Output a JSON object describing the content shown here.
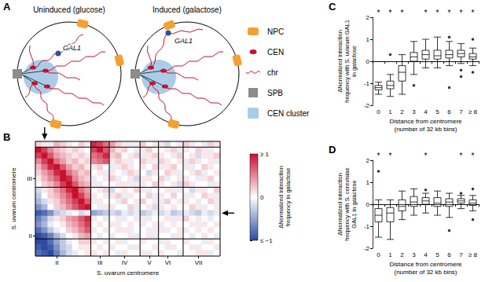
{
  "diagram": {
    "panel": "A",
    "gene_color": "#2f4f9f",
    "nuclei": [
      {
        "title": "Uninduced (glucose)",
        "gene": "GAL1"
      },
      {
        "title": "Induced (galactose)",
        "gene": "GAL1"
      }
    ],
    "key": [
      {
        "label": "NPC",
        "color": "#f5a030"
      },
      {
        "label": "CEN",
        "color": "#c8102e"
      },
      {
        "label": "chr",
        "color": "#c8102e"
      },
      {
        "label": "SPB",
        "color": "#8c8c8c"
      },
      {
        "label": "CEN cluster",
        "color": "#a9cde9"
      }
    ]
  },
  "chart_data": [
    {
      "panel": "B",
      "type": "heatmap",
      "x_label": "S. uvarum centromere",
      "y_label": "S. uvarum centromere",
      "categories": [
        null,
        null,
        null,
        "II",
        null,
        null,
        null,
        null,
        null,
        null,
        "III",
        null,
        null,
        null,
        "IV",
        null,
        null,
        null,
        "V",
        null,
        null,
        "VI",
        null,
        null,
        null,
        null,
        "VII",
        null,
        null,
        null
      ],
      "y_categories": [
        null,
        null,
        null,
        null,
        null,
        null,
        "III",
        null,
        null,
        null,
        null,
        null,
        null,
        null,
        null,
        null,
        "II",
        null,
        null,
        null
      ],
      "x_boundaries": [
        9,
        12,
        17,
        20,
        24
      ],
      "y_boundaries": [
        1,
        8,
        17
      ],
      "gal1_bin": {
        "x": 1,
        "y": 12
      },
      "cells": [
        [
          0.2,
          0.1,
          -0.1,
          0.3,
          0.2,
          0.1,
          0.0,
          0.2,
          0.1,
          0.9,
          0.8,
          0.6,
          0.4,
          0.2,
          0.1,
          -0.1,
          0.1,
          0.2,
          0.0,
          0.1,
          0.1,
          -0.2,
          0.0,
          0.1,
          0.2,
          0.1,
          0.0,
          -0.1,
          0.2,
          0.1
        ],
        [
          1.0,
          0.8,
          0.5,
          0.3,
          0.2,
          0.1,
          0.2,
          0.1,
          0.0,
          0.8,
          1.0,
          0.7,
          0.3,
          0.1,
          0.2,
          0.0,
          -0.1,
          0.1,
          0.2,
          0.0,
          0.0,
          0.1,
          0.2,
          -0.1,
          0.1,
          0.0,
          0.2,
          0.1,
          -0.1,
          0.0
        ],
        [
          0.8,
          1.0,
          0.7,
          0.4,
          0.3,
          0.2,
          0.1,
          0.2,
          0.1,
          0.6,
          0.7,
          0.9,
          0.2,
          0.3,
          0.0,
          0.1,
          0.2,
          -0.1,
          0.1,
          0.2,
          0.1,
          0.0,
          -0.1,
          0.2,
          0.0,
          0.1,
          -0.2,
          0.1,
          0.1,
          0.2
        ],
        [
          0.5,
          0.8,
          1.0,
          0.6,
          0.4,
          0.2,
          0.3,
          0.1,
          0.2,
          0.5,
          0.6,
          0.7,
          0.1,
          0.2,
          0.1,
          -0.1,
          0.0,
          0.2,
          0.1,
          -0.1,
          0.2,
          0.1,
          0.0,
          0.1,
          -0.1,
          0.2,
          0.1,
          0.0,
          0.1,
          -0.1
        ],
        [
          0.3,
          0.6,
          0.9,
          1.0,
          0.7,
          0.4,
          0.2,
          0.3,
          0.1,
          0.1,
          0.2,
          0.0,
          -0.1,
          0.1,
          0.2,
          0.1,
          0.0,
          0.1,
          0.0,
          0.2,
          -0.1,
          0.1,
          0.2,
          0.0,
          0.1,
          -0.1,
          0.0,
          0.2,
          0.1,
          0.0
        ],
        [
          0.2,
          0.4,
          0.6,
          0.9,
          1.0,
          0.6,
          0.4,
          0.2,
          0.3,
          0.0,
          0.1,
          -0.1,
          0.1,
          0.0,
          -0.1,
          0.2,
          0.1,
          0.0,
          -0.2,
          0.1,
          0.0,
          0.2,
          0.1,
          -0.1,
          0.0,
          0.1,
          0.2,
          -0.1,
          0.0,
          0.1
        ],
        [
          0.1,
          0.3,
          0.5,
          0.7,
          1.0,
          0.9,
          0.5,
          0.3,
          0.2,
          -0.1,
          0.0,
          0.1,
          0.2,
          -0.1,
          0.0,
          0.1,
          -0.2,
          0.1,
          0.1,
          0.0,
          0.2,
          -0.1,
          0.0,
          0.1,
          0.1,
          0.0,
          -0.1,
          0.1,
          0.2,
          0.0
        ],
        [
          0.0,
          0.2,
          0.3,
          0.5,
          0.8,
          1.0,
          0.7,
          0.4,
          0.3,
          0.1,
          -0.1,
          0.0,
          0.0,
          0.1,
          0.1,
          -0.1,
          0.1,
          -0.1,
          0.0,
          0.2,
          0.1,
          0.0,
          0.1,
          -0.2,
          0.2,
          0.1,
          0.0,
          0.0,
          -0.1,
          0.1
        ],
        [
          -0.2,
          0.1,
          0.2,
          0.4,
          0.6,
          0.9,
          1.0,
          0.6,
          0.4,
          0.0,
          0.1,
          0.2,
          -0.2,
          0.0,
          0.1,
          0.0,
          0.2,
          0.1,
          -0.1,
          0.0,
          0.0,
          0.1,
          -0.1,
          0.1,
          0.0,
          -0.2,
          0.1,
          0.1,
          0.0,
          0.2
        ],
        [
          -0.3,
          0.0,
          0.2,
          0.3,
          0.5,
          0.7,
          1.0,
          0.8,
          0.5,
          0.1,
          0.0,
          -0.1,
          0.1,
          0.2,
          -0.1,
          0.1,
          0.0,
          0.0,
          0.2,
          -0.1,
          0.1,
          0.0,
          0.2,
          0.0,
          -0.1,
          0.1,
          0.0,
          0.2,
          0.1,
          -0.1
        ],
        [
          -0.4,
          -0.2,
          0.1,
          0.2,
          0.4,
          0.6,
          0.8,
          1.0,
          0.7,
          -0.1,
          0.1,
          0.0,
          0.0,
          -0.1,
          0.2,
          0.0,
          0.1,
          0.2,
          0.0,
          0.1,
          -0.1,
          0.2,
          0.0,
          0.1,
          0.1,
          0.0,
          -0.1,
          0.0,
          0.2,
          0.1
        ],
        [
          -0.6,
          -0.4,
          0.0,
          0.2,
          0.3,
          0.5,
          0.7,
          0.9,
          1.0,
          0.0,
          -0.1,
          0.1,
          0.1,
          0.0,
          0.0,
          0.2,
          -0.1,
          0.0,
          0.1,
          -0.2,
          0.1,
          0.0,
          0.1,
          0.0,
          0.0,
          0.2,
          0.1,
          -0.1,
          0.0,
          0.1
        ],
        [
          -0.9,
          -0.8,
          -0.6,
          -0.3,
          -0.2,
          -0.1,
          0.0,
          -0.2,
          -0.1,
          -0.5,
          -0.4,
          -0.3,
          -0.2,
          -0.3,
          -0.1,
          -0.2,
          -0.1,
          -0.3,
          -0.2,
          -0.1,
          -0.2,
          -0.1,
          -0.3,
          -0.2,
          -0.1,
          -0.2,
          -0.3,
          -0.1,
          -0.2,
          -0.1
        ],
        [
          -0.7,
          -0.5,
          -0.2,
          0.1,
          0.2,
          0.4,
          0.5,
          0.7,
          0.9,
          0.1,
          0.0,
          -0.1,
          0.0,
          0.1,
          -0.1,
          0.0,
          0.1,
          -0.1,
          0.1,
          0.0,
          0.0,
          0.1,
          -0.1,
          0.1,
          0.2,
          0.0,
          0.1,
          0.0,
          -0.1,
          0.0
        ],
        [
          -0.6,
          -0.4,
          -0.1,
          0.0,
          0.1,
          0.3,
          0.4,
          0.6,
          0.8,
          0.0,
          0.1,
          0.0,
          0.1,
          -0.1,
          0.0,
          0.1,
          0.0,
          0.1,
          0.0,
          0.1,
          -0.1,
          0.0,
          0.1,
          0.0,
          0.0,
          0.1,
          -0.1,
          0.1,
          0.0,
          0.1
        ],
        [
          -0.8,
          -0.6,
          -0.3,
          -0.1,
          0.0,
          0.2,
          0.3,
          0.5,
          0.7,
          -0.1,
          0.0,
          0.1,
          0.0,
          0.1,
          0.1,
          -0.1,
          0.0,
          0.0,
          -0.1,
          0.1,
          0.1,
          -0.1,
          0.0,
          0.1,
          -0.1,
          0.0,
          0.1,
          0.0,
          0.1,
          0.0
        ],
        [
          -1.0,
          -0.9,
          -0.7,
          -0.4,
          -0.2,
          0.0,
          0.1,
          0.3,
          0.4,
          0.0,
          -0.1,
          0.0,
          -0.1,
          0.0,
          0.0,
          0.1,
          -0.1,
          0.0,
          0.1,
          -0.1,
          0.0,
          0.0,
          -0.1,
          0.1,
          0.0,
          -0.1,
          0.0,
          0.1,
          0.0,
          -0.1
        ],
        [
          -1.0,
          -1.0,
          -0.8,
          -0.5,
          -0.3,
          -0.1,
          0.0,
          0.2,
          0.2,
          0.1,
          0.0,
          -0.1,
          0.0,
          0.1,
          -0.1,
          0.0,
          0.0,
          0.1,
          0.0,
          0.0,
          -0.1,
          0.1,
          0.0,
          0.0,
          0.1,
          0.0,
          0.0,
          -0.1,
          0.1,
          0.0
        ],
        [
          -0.9,
          -1.0,
          -0.9,
          -0.6,
          -0.3,
          -0.2,
          0.0,
          0.1,
          0.1,
          0.0,
          0.1,
          0.0,
          0.1,
          0.0,
          0.0,
          -0.1,
          0.1,
          0.0,
          0.0,
          0.1,
          0.0,
          -0.1,
          0.1,
          0.0,
          0.0,
          0.1,
          -0.1,
          0.0,
          0.0,
          0.1
        ],
        [
          -0.8,
          -0.9,
          -1.0,
          -0.7,
          -0.4,
          -0.2,
          -0.1,
          0.0,
          0.1,
          0.1,
          0.0,
          0.1,
          0.0,
          -0.1,
          0.1,
          0.0,
          0.0,
          -0.1,
          0.1,
          0.0,
          0.1,
          0.0,
          0.0,
          -0.1,
          0.0,
          0.0,
          0.1,
          0.1,
          -0.1,
          0.0
        ]
      ],
      "colorbar": {
        "label": "ΔNormalized interaction frequency in galactose",
        "range": [
          -1,
          1
        ],
        "ticks": [
          {
            "value": -1,
            "label": "≤ −1"
          },
          0,
          {
            "value": 1,
            "label": "≥ 1"
          }
        ],
        "colors": [
          "#2b4aa0",
          "#ffffff",
          "#c8102e"
        ]
      }
    },
    {
      "panel": "C",
      "type": "boxplot",
      "x_label": "Distance from centromere (number of 32 kb bins)",
      "y_label": "ΔNormalized interaction frequency with S. uvarum GAL1 in galactose",
      "categories": [
        "0",
        "1",
        "2",
        "3",
        "4",
        "5",
        "6",
        "7",
        "≥ 8"
      ],
      "boxes": [
        [
          -1.5,
          -1.3,
          -1.2,
          -1.1,
          -0.95
        ],
        [
          -1.6,
          -1.25,
          -1.1,
          -0.9,
          -0.6
        ],
        [
          -1.5,
          -0.9,
          -0.5,
          -0.2,
          0.3
        ],
        [
          -0.6,
          0.0,
          0.2,
          0.4,
          0.9
        ],
        [
          -0.3,
          0.1,
          0.3,
          0.5,
          1.0
        ],
        [
          -0.3,
          0.1,
          0.25,
          0.5,
          1.1
        ],
        [
          -0.2,
          0.15,
          0.3,
          0.5,
          0.9
        ],
        [
          -0.1,
          0.2,
          0.35,
          0.5,
          0.8
        ],
        [
          -0.2,
          0.1,
          0.2,
          0.35,
          0.6
        ]
      ],
      "outliers": [
        [],
        [
          0.3
        ],
        [],
        [
          -1.1
        ],
        [],
        [],
        [
          1.1,
          -1.2
        ],
        [
          -0.4,
          -0.7
        ],
        [
          1.0,
          -0.5
        ]
      ],
      "significance": [
        "*",
        "*",
        "*",
        null,
        "*",
        "*",
        "*",
        "*",
        "*"
      ],
      "ylim": [
        -2,
        2
      ],
      "yticks": [
        -2,
        -1,
        0,
        1,
        2
      ],
      "hline": 0
    },
    {
      "panel": "D",
      "type": "boxplot",
      "x_label": "Distance from centromere (number of 32 kb bins)",
      "y_label": "ΔNormalized interaction frequency with S. cerevisiae GAL1 in galactose",
      "categories": [
        "0",
        "1",
        "2",
        "3",
        "4",
        "5",
        "6",
        "7",
        "≥ 8"
      ],
      "boxes": [
        [
          -1.5,
          -0.8,
          -0.5,
          -0.2,
          0.2
        ],
        [
          -1.6,
          -0.8,
          -0.4,
          -0.15,
          0.2
        ],
        [
          -0.7,
          -0.3,
          -0.1,
          0.2,
          0.6
        ],
        [
          -0.5,
          -0.1,
          0.1,
          0.35,
          0.7
        ],
        [
          -0.4,
          0.0,
          0.15,
          0.3,
          0.5
        ],
        [
          -0.5,
          -0.1,
          0.05,
          0.3,
          0.6
        ],
        [
          -0.6,
          -0.1,
          0.1,
          0.25,
          0.5
        ],
        [
          -0.2,
          0.05,
          0.15,
          0.25,
          0.4
        ],
        [
          -0.3,
          -0.05,
          0.05,
          0.2,
          0.4
        ]
      ],
      "outliers": [
        [
          1.5
        ],
        [],
        [],
        [],
        [
          0.65
        ],
        [],
        [
          -1.2
        ],
        [
          0.5
        ],
        [
          -0.7,
          0.7
        ]
      ],
      "significance": [
        "*",
        "*",
        null,
        null,
        "*",
        null,
        null,
        "*",
        "*"
      ],
      "ylim": [
        -2,
        2
      ],
      "yticks": [
        -2,
        -1,
        0,
        1,
        2
      ],
      "hline": 0
    }
  ]
}
